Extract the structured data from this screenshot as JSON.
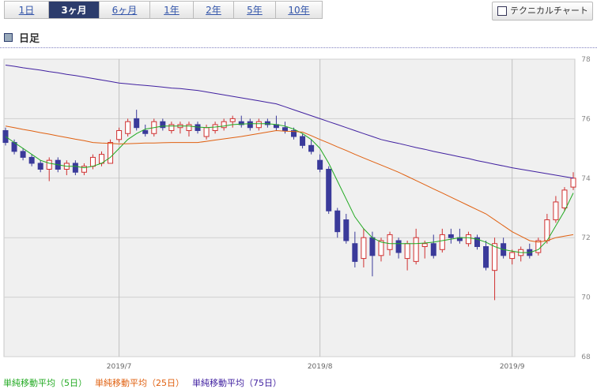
{
  "ui": {
    "tabs": [
      "1日",
      "3ヶ月",
      "6ヶ月",
      "1年",
      "2年",
      "5年",
      "10年"
    ],
    "selected_tab": 1,
    "button": "テクニカルチャート",
    "period_label": "日足"
  },
  "chart_data": {
    "type": "candlestick",
    "categories": [
      null,
      null,
      null,
      null,
      null,
      null,
      null,
      null,
      null,
      null,
      null,
      null,
      null,
      "2019/7",
      null,
      null,
      null,
      null,
      null,
      null,
      null,
      null,
      null,
      null,
      null,
      null,
      null,
      null,
      null,
      null,
      null,
      null,
      null,
      null,
      null,
      null,
      "2019/8",
      null,
      null,
      null,
      null,
      null,
      null,
      null,
      null,
      null,
      null,
      null,
      null,
      null,
      null,
      null,
      null,
      null,
      null,
      null,
      null,
      null,
      "2019/9",
      null,
      null,
      null,
      null,
      null,
      null,
      null
    ],
    "open": [
      75.6,
      75.2,
      74.9,
      74.7,
      74.5,
      74.3,
      74.6,
      74.3,
      74.5,
      74.2,
      74.4,
      74.5,
      74.5,
      75.3,
      75.5,
      76.0,
      75.6,
      75.5,
      75.9,
      75.6,
      75.7,
      75.6,
      75.8,
      75.4,
      75.6,
      75.7,
      75.9,
      75.9,
      75.9,
      75.7,
      75.9,
      75.8,
      75.7,
      75.6,
      75.4,
      75.1,
      74.6,
      74.3,
      72.9,
      72.6,
      71.8,
      71.3,
      72.0,
      71.4,
      71.6,
      71.9,
      71.3,
      71.2,
      71.7,
      71.8,
      71.6,
      72.1,
      72.0,
      71.8,
      72.0,
      71.7,
      70.9,
      71.8,
      71.3,
      71.4,
      71.6,
      71.5,
      71.9,
      72.6,
      73.0,
      73.7
    ],
    "high": [
      75.7,
      75.3,
      75.0,
      74.8,
      74.6,
      74.7,
      74.7,
      74.6,
      74.6,
      74.5,
      74.8,
      74.9,
      75.3,
      75.7,
      76.0,
      76.3,
      75.8,
      76.0,
      76.0,
      75.9,
      75.9,
      75.9,
      75.9,
      75.8,
      75.9,
      76.0,
      76.1,
      76.1,
      76.0,
      76.0,
      76.0,
      76.1,
      75.9,
      75.7,
      75.5,
      75.3,
      74.8,
      74.4,
      73.0,
      72.8,
      72.2,
      72.3,
      72.2,
      72.0,
      72.2,
      72.0,
      71.9,
      72.3,
      71.9,
      72.1,
      72.3,
      72.3,
      72.3,
      72.2,
      72.1,
      71.9,
      72.0,
      72.0,
      71.6,
      71.7,
      71.8,
      72.0,
      72.8,
      73.4,
      73.7,
      74.2
    ],
    "low": [
      75.1,
      74.8,
      74.6,
      74.4,
      74.2,
      73.9,
      74.2,
      74.1,
      74.1,
      74.1,
      74.3,
      74.4,
      74.5,
      75.2,
      75.4,
      75.6,
      75.4,
      75.4,
      75.6,
      75.5,
      75.5,
      75.4,
      75.5,
      75.3,
      75.5,
      75.6,
      75.7,
      75.7,
      75.6,
      75.6,
      75.7,
      75.6,
      75.5,
      75.3,
      75.0,
      74.8,
      74.2,
      72.8,
      72.0,
      71.8,
      71.0,
      71.0,
      70.7,
      71.2,
      71.4,
      71.3,
      70.9,
      71.1,
      71.3,
      71.3,
      71.5,
      71.8,
      71.8,
      71.7,
      71.6,
      70.9,
      69.9,
      71.3,
      71.1,
      71.2,
      71.3,
      71.4,
      71.8,
      72.5,
      72.9,
      73.6
    ],
    "close": [
      75.2,
      74.9,
      74.7,
      74.5,
      74.3,
      74.6,
      74.3,
      74.5,
      74.2,
      74.4,
      74.7,
      74.8,
      75.2,
      75.6,
      75.9,
      75.7,
      75.5,
      75.9,
      75.7,
      75.8,
      75.8,
      75.8,
      75.6,
      75.7,
      75.8,
      75.9,
      76.0,
      75.8,
      75.7,
      75.9,
      75.8,
      75.7,
      75.6,
      75.4,
      75.1,
      74.9,
      74.3,
      72.9,
      72.2,
      71.9,
      71.2,
      72.0,
      71.4,
      71.9,
      72.1,
      71.5,
      71.8,
      72.0,
      71.8,
      71.4,
      72.1,
      72.0,
      71.9,
      72.1,
      71.7,
      71.0,
      71.8,
      71.4,
      71.5,
      71.6,
      71.4,
      71.9,
      72.6,
      73.2,
      73.6,
      74.0
    ],
    "up_color": "#d03030",
    "down_color": "#3a3a9a",
    "series": [
      {
        "name": "単純移動平均（5日）",
        "color": "#22aa22",
        "values": [
          75.4,
          75.2,
          75.0,
          74.8,
          74.6,
          74.5,
          74.45,
          74.4,
          74.4,
          74.35,
          74.4,
          74.5,
          74.7,
          75.0,
          75.3,
          75.5,
          75.65,
          75.7,
          75.75,
          75.75,
          75.75,
          75.75,
          75.72,
          75.7,
          75.72,
          75.75,
          75.8,
          75.82,
          75.83,
          75.83,
          75.83,
          75.8,
          75.75,
          75.65,
          75.5,
          75.3,
          75.0,
          74.5,
          73.9,
          73.3,
          72.7,
          72.3,
          72.0,
          71.85,
          71.8,
          71.8,
          71.8,
          71.8,
          71.82,
          71.85,
          71.9,
          71.95,
          72.0,
          72.0,
          71.95,
          71.85,
          71.7,
          71.6,
          71.55,
          71.5,
          71.5,
          71.6,
          71.9,
          72.4,
          72.9,
          73.5
        ]
      },
      {
        "name": "単純移動平均（25日）",
        "color": "#e06010",
        "values": [
          75.75,
          75.7,
          75.64,
          75.59,
          75.53,
          75.48,
          75.42,
          75.37,
          75.31,
          75.26,
          75.2,
          75.18,
          75.17,
          75.15,
          75.16,
          75.17,
          75.18,
          75.18,
          75.19,
          75.2,
          75.2,
          75.2,
          75.2,
          75.24,
          75.28,
          75.32,
          75.36,
          75.4,
          75.45,
          75.5,
          75.55,
          75.6,
          75.58,
          75.57,
          75.55,
          75.43,
          75.3,
          75.18,
          75.05,
          74.93,
          74.8,
          74.68,
          74.56,
          74.44,
          74.32,
          74.2,
          74.06,
          73.92,
          73.78,
          73.64,
          73.5,
          73.36,
          73.22,
          73.08,
          72.94,
          72.8,
          72.6,
          72.4,
          72.2,
          72.05,
          71.9,
          71.85,
          71.9,
          72.0,
          72.05,
          72.1
        ]
      },
      {
        "name": "単純移動平均（75日）",
        "color": "#4020a0",
        "values": [
          77.8,
          77.76,
          77.71,
          77.67,
          77.63,
          77.58,
          77.54,
          77.49,
          77.45,
          77.4,
          77.35,
          77.3,
          77.25,
          77.2,
          77.17,
          77.14,
          77.12,
          77.09,
          77.06,
          77.03,
          77.01,
          76.98,
          76.95,
          76.9,
          76.85,
          76.8,
          76.75,
          76.7,
          76.65,
          76.6,
          76.55,
          76.5,
          76.4,
          76.3,
          76.2,
          76.1,
          76.0,
          75.9,
          75.8,
          75.7,
          75.6,
          75.5,
          75.4,
          75.3,
          75.23,
          75.17,
          75.1,
          75.03,
          74.97,
          74.9,
          74.84,
          74.78,
          74.72,
          74.66,
          74.59,
          74.53,
          74.47,
          74.41,
          74.35,
          74.3,
          74.25,
          74.2,
          74.15,
          74.1,
          74.05,
          74.0
        ]
      }
    ],
    "ylim": [
      68,
      78
    ],
    "yticks": [
      68,
      70,
      72,
      74,
      76,
      78
    ],
    "grid": true
  }
}
